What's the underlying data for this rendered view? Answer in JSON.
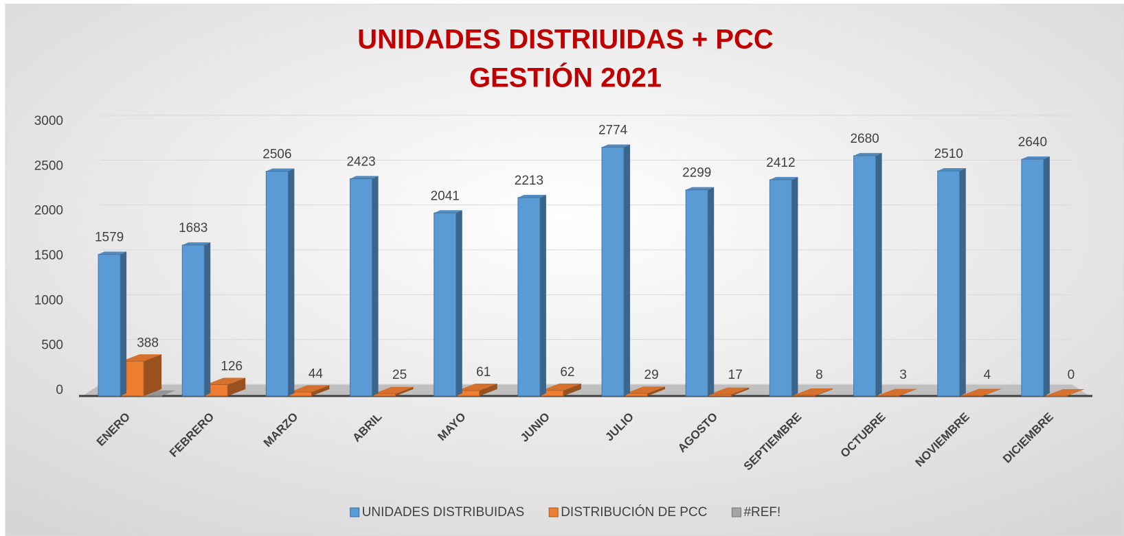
{
  "chart_data": {
    "type": "bar3d",
    "title": "UNIDADES DISTRIUIDAS + PCC",
    "subtitle": "GESTIÓN 2021",
    "categories": [
      "ENERO",
      "FEBRERO",
      "MARZO",
      "ABRIL",
      "MAYO",
      "JUNIO",
      "JULIO",
      "AGOSTO",
      "SEPTIEMBRE",
      "OCTUBRE",
      "NOVIEMBRE",
      "DICIEMBRE"
    ],
    "series": [
      {
        "name": "UNIDADES DISTRIBUIDAS",
        "color": "#5b9bd5",
        "values": [
          1579,
          1683,
          2506,
          2423,
          2041,
          2213,
          2774,
          2299,
          2412,
          2680,
          2510,
          2640
        ]
      },
      {
        "name": "DISTRIBUCIÓN DE PCC",
        "color": "#ed7d31",
        "values": [
          388,
          126,
          44,
          25,
          61,
          62,
          29,
          17,
          8,
          3,
          4,
          0
        ]
      },
      {
        "name": "#REF!",
        "color": "#a5a5a5",
        "values": [
          1,
          null,
          null,
          null,
          null,
          null,
          null,
          null,
          null,
          null,
          null,
          null
        ]
      }
    ],
    "ylim": [
      0,
      3000
    ],
    "yticks": [
      0,
      500,
      1000,
      1500,
      2000,
      2500,
      3000
    ],
    "grid": true,
    "legend": "bottom"
  }
}
